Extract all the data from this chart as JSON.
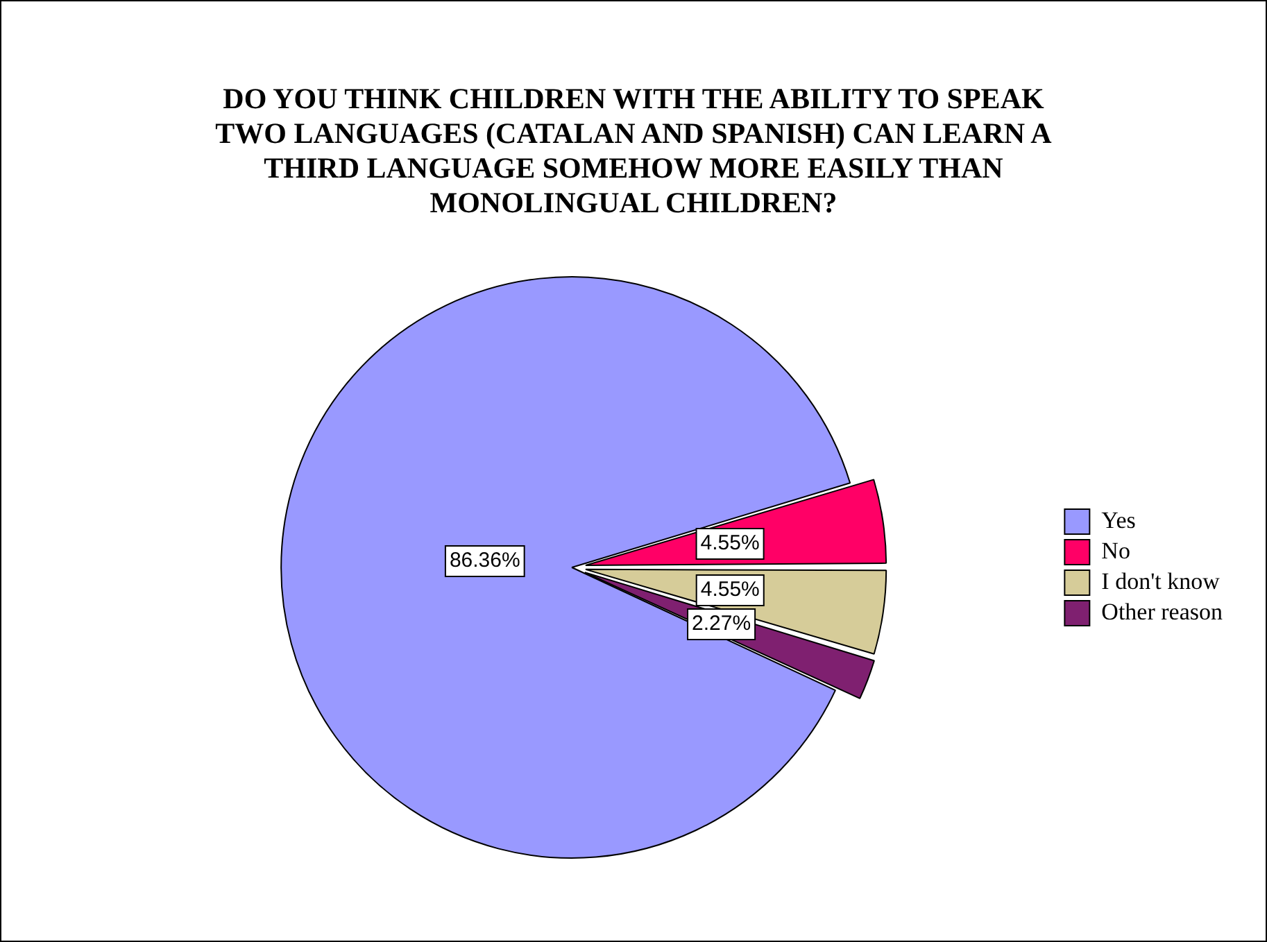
{
  "chart_data": {
    "type": "pie",
    "title": "DO YOU THINK CHILDREN WITH THE ABILITY TO SPEAK TWO LANGUAGES (CATALAN AND SPANISH) CAN LEARN A THIRD LANGUAGE SOMEHOW MORE EASILY THAN MONOLINGUAL CHILDREN?",
    "categories": [
      "Yes",
      "No",
      "I don't know",
      "Other reason"
    ],
    "values": [
      86.36,
      4.55,
      4.55,
      2.27
    ],
    "colors": [
      "#9999ff",
      "#ff0066",
      "#d6cc99",
      "#7f2070"
    ],
    "value_labels": [
      "86.36%",
      "4.55%",
      "4.55%",
      "2.27%"
    ],
    "legend": "right"
  }
}
